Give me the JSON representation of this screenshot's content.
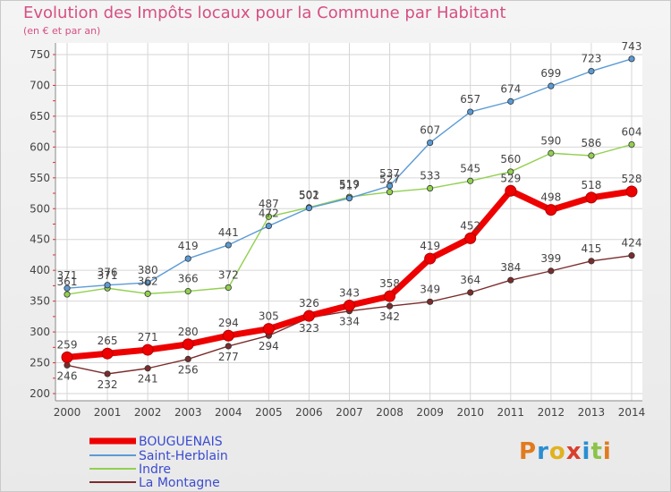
{
  "chart": {
    "title": "Evolution des Impôts locaux pour la Commune par Habitant",
    "subtitle": "(en € et par an)",
    "logo_text": "Proxiti"
  },
  "chart_data": {
    "type": "line",
    "title": "Evolution des Impôts locaux pour la Commune par Habitant",
    "subtitle": "(en € et par an)",
    "x": [
      "2000",
      "2001",
      "2002",
      "2003",
      "2004",
      "2005",
      "2006",
      "2007",
      "2008",
      "2009",
      "2010",
      "2011",
      "2012",
      "2013",
      "2014"
    ],
    "ylim": [
      200,
      750
    ],
    "yticks": [
      200,
      250,
      300,
      350,
      400,
      450,
      500,
      550,
      600,
      650,
      700,
      750
    ],
    "grid": true,
    "legend_position": "bottom-left",
    "series": [
      {
        "name": "BOUGUENAIS",
        "color": "#ee0000",
        "values": [
          259,
          265,
          271,
          280,
          294,
          305,
          326,
          343,
          358,
          419,
          452,
          529,
          498,
          518,
          528
        ]
      },
      {
        "name": "Saint-Herblain",
        "color": "#5b9bd5",
        "values": [
          371,
          376,
          380,
          419,
          441,
          472,
          501,
          517,
          537,
          607,
          657,
          674,
          699,
          723,
          743
        ]
      },
      {
        "name": "Indre",
        "color": "#92d050",
        "values": [
          361,
          371,
          362,
          366,
          372,
          487,
          502,
          519,
          527,
          533,
          545,
          560,
          590,
          586,
          604
        ]
      },
      {
        "name": "La Montagne",
        "color": "#7b2c2c",
        "values": [
          246,
          232,
          241,
          256,
          277,
          294,
          323,
          334,
          342,
          349,
          364,
          384,
          399,
          415,
          424
        ]
      }
    ]
  }
}
